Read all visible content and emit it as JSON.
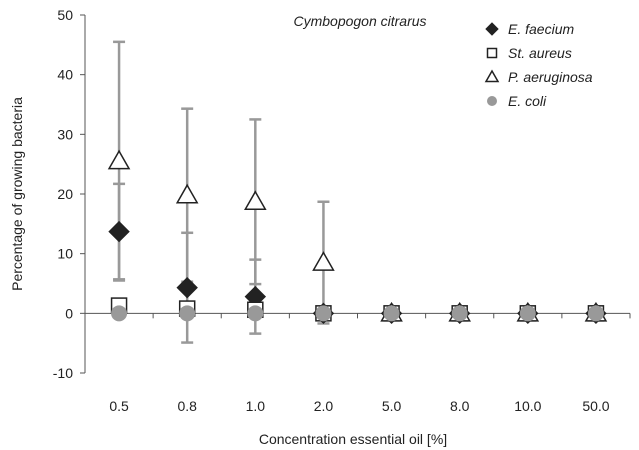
{
  "chart_data": {
    "type": "scatter",
    "title": "Cymbopogon citrarus",
    "xlabel": "Concentration essential oil [%]",
    "ylabel": "Percentage of growing bacteria",
    "categories": [
      "0.5",
      "0.8",
      "1.0",
      "2.0",
      "5.0",
      "8.0",
      "10.0",
      "50.0"
    ],
    "ylim": [
      -10,
      50
    ],
    "yticks": [
      "-10",
      "0",
      "10",
      "20",
      "30",
      "40",
      "50"
    ],
    "grid": false,
    "legend_position": "top-right",
    "series": [
      {
        "name": "E. faecium",
        "marker": "diamond-filled",
        "color": "#222222",
        "values": [
          13.7,
          4.3,
          2.8,
          0,
          0,
          0,
          0,
          0
        ],
        "error": [
          8.0,
          9.2,
          6.2,
          0,
          0,
          0,
          0,
          0
        ]
      },
      {
        "name": "St. aureus",
        "marker": "square-open",
        "color": "#222222",
        "values": [
          1.3,
          0.8,
          0.6,
          0,
          0,
          0,
          0,
          0
        ],
        "error": [
          0,
          0,
          0,
          0,
          0,
          0,
          0,
          0
        ]
      },
      {
        "name": "P. aeruginosa",
        "marker": "triangle-open",
        "color": "#222222",
        "values": [
          25.5,
          19.8,
          18.7,
          8.5,
          0,
          0,
          0,
          0
        ],
        "error": [
          20.0,
          14.5,
          13.8,
          10.2,
          0,
          0,
          0,
          0
        ]
      },
      {
        "name": "E. coli",
        "marker": "circle-filled",
        "color": "#999999",
        "values": [
          0,
          0,
          0,
          0,
          0,
          0,
          0,
          0
        ],
        "error": [
          0,
          0,
          0,
          0,
          0,
          0,
          0,
          0
        ]
      }
    ],
    "error_bar_color": "#999999"
  }
}
